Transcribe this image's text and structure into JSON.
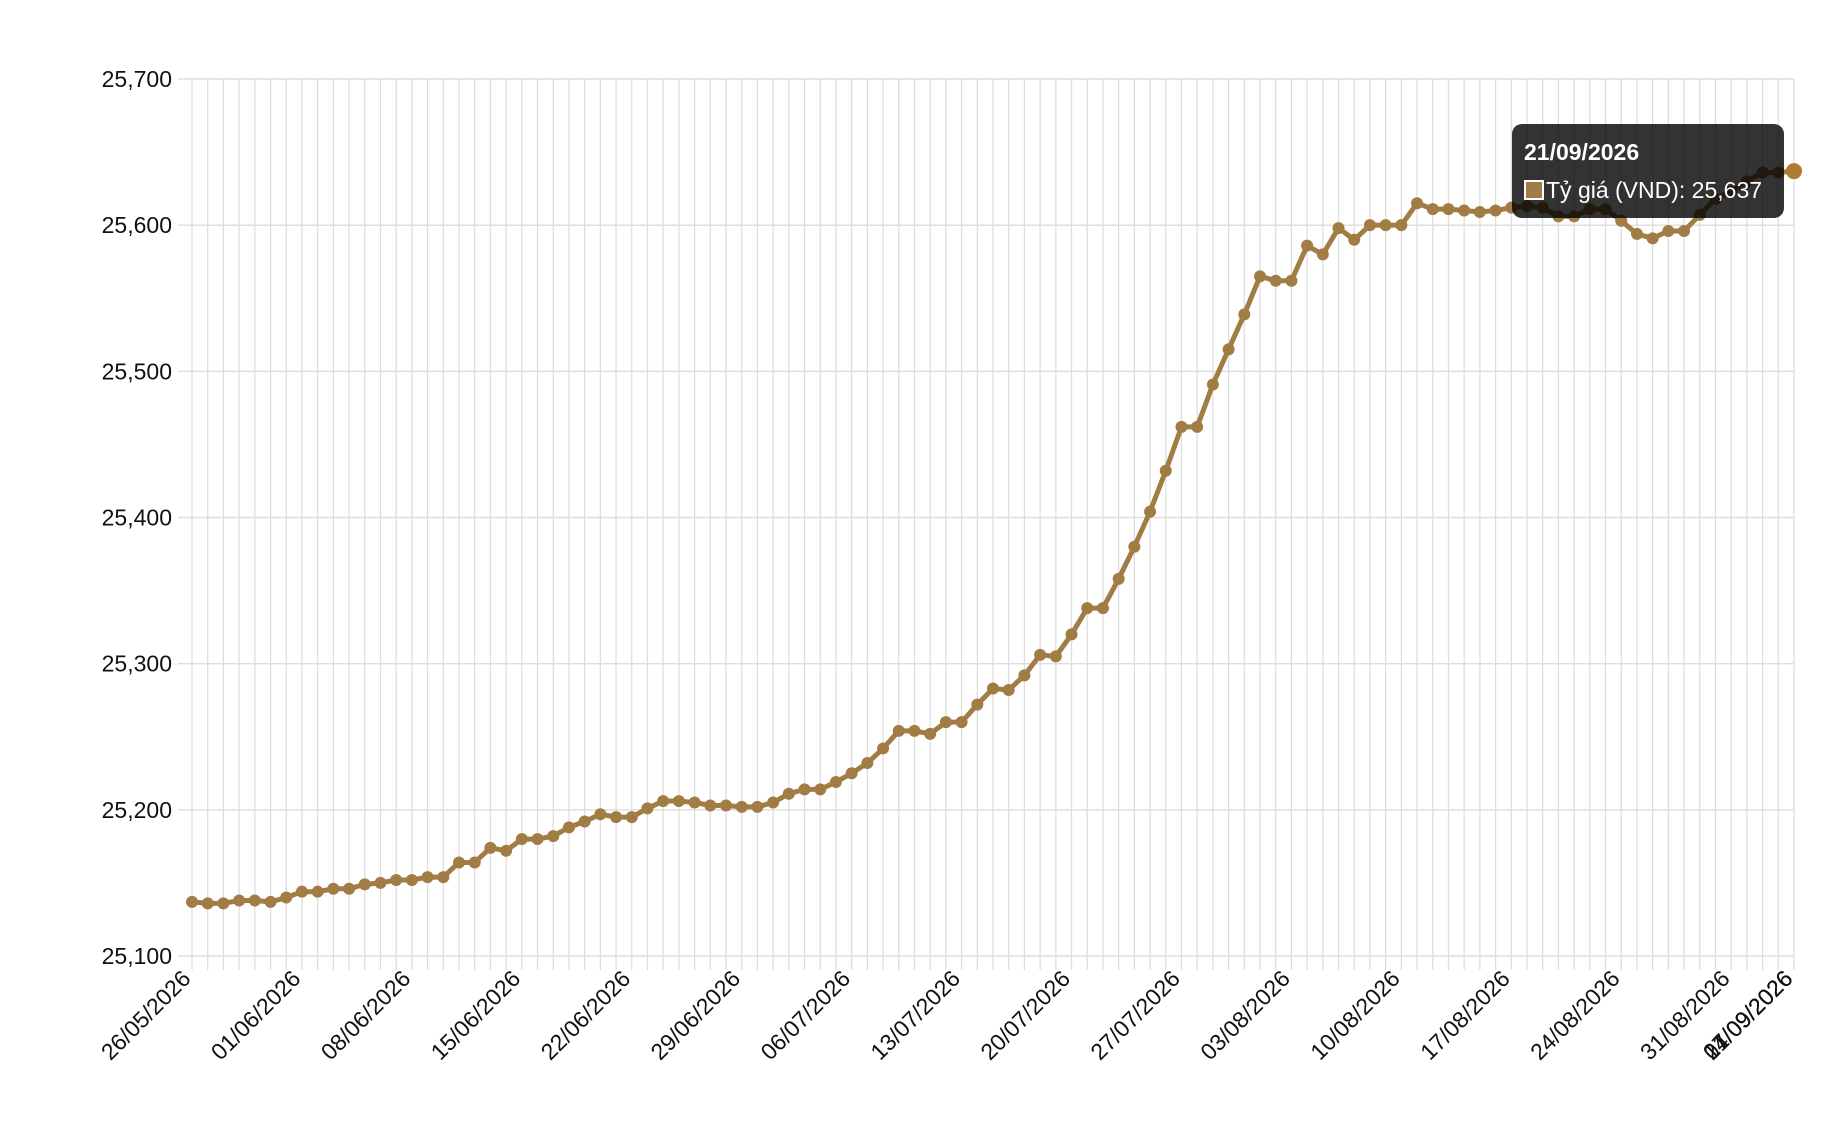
{
  "chart_data": {
    "type": "line",
    "title": "",
    "xlabel": "",
    "ylabel": "",
    "ylim": [
      25100,
      25700
    ],
    "yticks": [
      "25,100",
      "25,200",
      "25,300",
      "25,400",
      "25,500",
      "25,600",
      "25,700"
    ],
    "xtick_labels": [
      "26/05/2026",
      "01/06/2026",
      "08/06/2026",
      "15/06/2026",
      "22/06/2026",
      "29/06/2026",
      "06/07/2026",
      "13/07/2026",
      "20/07/2026",
      "27/07/2026",
      "03/08/2026",
      "10/08/2026",
      "17/08/2026",
      "24/08/2026",
      "31/08/2026",
      "07/09/2026",
      "14/09/2026",
      "21/09/2026"
    ],
    "grid": true,
    "colors": {
      "line": "#a17d45",
      "grid": "#dddddd",
      "highlight": "#b07a2f"
    },
    "series": [
      {
        "name": "Tỷ giá (VND)",
        "x_start": "26/05/2026",
        "x_end": "21/09/2026",
        "values": [
          25137,
          25136,
          25136,
          25138,
          25138,
          25137,
          25140,
          25144,
          25144,
          25146,
          25146,
          25149,
          25150,
          25152,
          25152,
          25154,
          25154,
          25164,
          25164,
          25174,
          25172,
          25180,
          25180,
          25182,
          25188,
          25192,
          25197,
          25195,
          25195,
          25201,
          25206,
          25206,
          25205,
          25203,
          25203,
          25202,
          25202,
          25205,
          25211,
          25214,
          25214,
          25219,
          25225,
          25232,
          25242,
          25254,
          25254,
          25252,
          25260,
          25260,
          25272,
          25283,
          25282,
          25292,
          25306,
          25305,
          25320,
          25338,
          25338,
          25358,
          25380,
          25404,
          25432,
          25462,
          25462,
          25491,
          25515,
          25539,
          25565,
          25562,
          25562,
          25586,
          25580,
          25598,
          25590,
          25600,
          25600,
          25600,
          25615,
          25611,
          25611,
          25610,
          25609,
          25610,
          25612,
          25613,
          25612,
          25606,
          25606,
          25611,
          25611,
          25603,
          25594,
          25591,
          25596,
          25596,
          25607,
          25618,
          25623,
          25630,
          25636,
          25636,
          25637
        ]
      }
    ]
  },
  "tooltip": {
    "title": "21/09/2026",
    "label": "Tỷ giá (VND): 25,637"
  }
}
